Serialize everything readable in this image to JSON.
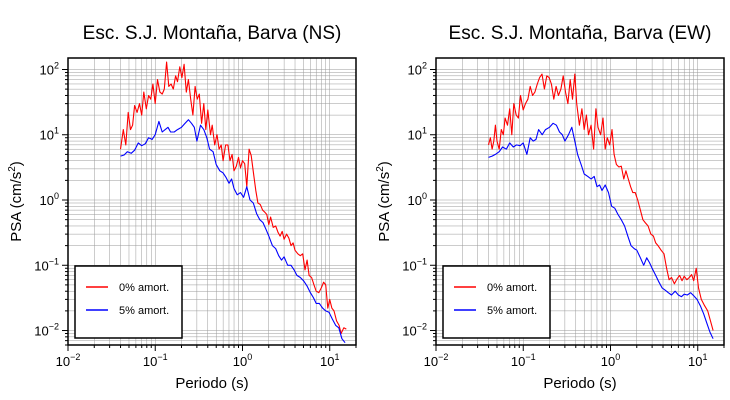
{
  "colors": {
    "red": "#ff0000",
    "blue": "#0000ff",
    "grid": "#9a9a9a",
    "axis": "#000000"
  },
  "chart_data": [
    {
      "type": "line",
      "title": "Esc. S.J. Montaña, Barva (NS)",
      "xlabel": "Periodo (s)",
      "ylabel_main": "PSA (cm/s",
      "ylabel_sup": "2",
      "ylabel_tail": ")",
      "xscale": "log",
      "yscale": "log",
      "xlim": [
        0.01,
        20
      ],
      "ylim": [
        0.006,
        150
      ],
      "grid": true,
      "legend_position": "bottom-left",
      "xticks": [
        {
          "b": "10",
          "e": "−2",
          "v": 0.01
        },
        {
          "b": "10",
          "e": "−1",
          "v": 0.1
        },
        {
          "b": "10",
          "e": "0",
          "v": 1
        },
        {
          "b": "10",
          "e": "1",
          "v": 10
        }
      ],
      "yticks": [
        {
          "b": "10",
          "e": "−2",
          "v": 0.01
        },
        {
          "b": "10",
          "e": "−1",
          "v": 0.1
        },
        {
          "b": "10",
          "e": "0",
          "v": 1
        },
        {
          "b": "10",
          "e": "1",
          "v": 10
        },
        {
          "b": "10",
          "e": "2",
          "v": 100
        }
      ],
      "series": [
        {
          "name": "0% amort.",
          "color": "#ff0000",
          "x": [
            0.04,
            0.043,
            0.046,
            0.049,
            0.052,
            0.055,
            0.058,
            0.062,
            0.066,
            0.07,
            0.074,
            0.079,
            0.084,
            0.089,
            0.094,
            0.1,
            0.106,
            0.113,
            0.12,
            0.127,
            0.135,
            0.143,
            0.152,
            0.161,
            0.171,
            0.18,
            0.191,
            0.202,
            0.214,
            0.227,
            0.24,
            0.255,
            0.27,
            0.286,
            0.303,
            0.32,
            0.34,
            0.36,
            0.38,
            0.4,
            0.43,
            0.45,
            0.48,
            0.51,
            0.54,
            0.57,
            0.6,
            0.64,
            0.68,
            0.72,
            0.76,
            0.8,
            0.85,
            0.9,
            0.95,
            1.0,
            1.06,
            1.12,
            1.19,
            1.26,
            1.34,
            1.42,
            1.5,
            1.6,
            1.7,
            1.8,
            1.9,
            2.0,
            2.1,
            2.25,
            2.4,
            2.55,
            2.7,
            2.85,
            3.0,
            3.2,
            3.4,
            3.6,
            3.8,
            4.0,
            4.3,
            4.6,
            4.9,
            5.2,
            5.5,
            5.8,
            6.2,
            6.6,
            7.0,
            7.5,
            8.0,
            8.5,
            9.0,
            9.5,
            10,
            10.6,
            11.2,
            12,
            12.8,
            13.5,
            14.5,
            15.5
          ],
          "y": [
            6,
            12,
            7,
            22,
            12,
            14,
            28,
            22,
            30,
            20,
            45,
            25,
            40,
            35,
            60,
            30,
            70,
            45,
            42,
            50,
            130,
            55,
            60,
            50,
            80,
            65,
            110,
            75,
            120,
            45,
            70,
            35,
            20,
            55,
            35,
            42,
            15,
            30,
            12,
            24,
            10,
            14,
            7,
            10,
            6,
            7,
            4,
            7,
            7,
            4,
            5,
            2.8,
            3.3,
            4.5,
            3.1,
            4.0,
            3.6,
            1.6,
            6.0,
            4.8,
            2.5,
            1.4,
            0.9,
            0.85,
            0.7,
            0.65,
            0.6,
            0.42,
            0.55,
            0.38,
            0.4,
            0.32,
            0.28,
            0.33,
            0.25,
            0.3,
            0.26,
            0.2,
            0.22,
            0.17,
            0.15,
            0.14,
            0.15,
            0.085,
            0.12,
            0.07,
            0.065,
            0.05,
            0.04,
            0.038,
            0.045,
            0.055,
            0.05,
            0.022,
            0.03,
            0.022,
            0.02,
            0.014,
            0.012,
            0.009,
            0.011,
            0.0105
          ]
        },
        {
          "name": "5% amort.",
          "color": "#0000ff",
          "x": [
            0.04,
            0.044,
            0.048,
            0.053,
            0.058,
            0.064,
            0.07,
            0.077,
            0.084,
            0.092,
            0.1,
            0.11,
            0.12,
            0.13,
            0.14,
            0.15,
            0.165,
            0.18,
            0.2,
            0.22,
            0.24,
            0.26,
            0.28,
            0.3,
            0.33,
            0.36,
            0.39,
            0.42,
            0.46,
            0.5,
            0.55,
            0.6,
            0.65,
            0.7,
            0.75,
            0.8,
            0.87,
            0.95,
            1.03,
            1.12,
            1.22,
            1.33,
            1.45,
            1.58,
            1.72,
            1.87,
            2.0,
            2.2,
            2.4,
            2.6,
            2.8,
            3.0,
            3.3,
            3.6,
            3.9,
            4.2,
            4.6,
            5.0,
            5.5,
            6.0,
            6.5,
            7.0,
            7.6,
            8.3,
            9.0,
            9.8,
            10.7,
            11.7,
            12.7,
            13.8,
            15.0
          ],
          "y": [
            4.7,
            4.9,
            5.5,
            5.2,
            5.8,
            7.5,
            6.8,
            7.3,
            9.0,
            8.5,
            10,
            16,
            11,
            12,
            13,
            11,
            11,
            12,
            13,
            15,
            17,
            15,
            13,
            8,
            14,
            12,
            9,
            6,
            5.5,
            3.5,
            2.8,
            2.6,
            2.2,
            1.8,
            2.1,
            1.5,
            1.2,
            1.3,
            1.1,
            1.6,
            1.0,
            0.9,
            0.62,
            0.5,
            0.45,
            0.35,
            0.28,
            0.2,
            0.18,
            0.14,
            0.12,
            0.135,
            0.1,
            0.1,
            0.085,
            0.07,
            0.065,
            0.058,
            0.048,
            0.038,
            0.032,
            0.026,
            0.026,
            0.022,
            0.02,
            0.019,
            0.015,
            0.012,
            0.011,
            0.0075,
            0.0065
          ]
        }
      ]
    },
    {
      "type": "line",
      "title": "Esc. S.J. Montaña, Barva (EW)",
      "xlabel": "Periodo (s)",
      "ylabel_main": "PSA (cm/s",
      "ylabel_sup": "2",
      "ylabel_tail": ")",
      "xscale": "log",
      "yscale": "log",
      "xlim": [
        0.01,
        20
      ],
      "ylim": [
        0.006,
        150
      ],
      "grid": true,
      "legend_position": "bottom-left",
      "xticks": [
        {
          "b": "10",
          "e": "−2",
          "v": 0.01
        },
        {
          "b": "10",
          "e": "−1",
          "v": 0.1
        },
        {
          "b": "10",
          "e": "0",
          "v": 1
        },
        {
          "b": "10",
          "e": "1",
          "v": 10
        }
      ],
      "yticks": [
        {
          "b": "10",
          "e": "−2",
          "v": 0.01
        },
        {
          "b": "10",
          "e": "−1",
          "v": 0.1
        },
        {
          "b": "10",
          "e": "0",
          "v": 1
        },
        {
          "b": "10",
          "e": "1",
          "v": 10
        },
        {
          "b": "10",
          "e": "2",
          "v": 100
        }
      ],
      "series": [
        {
          "name": "0% amort.",
          "color": "#ff0000",
          "x": [
            0.04,
            0.042,
            0.044,
            0.046,
            0.048,
            0.05,
            0.053,
            0.056,
            0.059,
            0.062,
            0.066,
            0.07,
            0.074,
            0.078,
            0.083,
            0.088,
            0.093,
            0.1,
            0.106,
            0.113,
            0.12,
            0.128,
            0.136,
            0.145,
            0.154,
            0.164,
            0.175,
            0.186,
            0.198,
            0.21,
            0.224,
            0.238,
            0.253,
            0.27,
            0.287,
            0.305,
            0.325,
            0.345,
            0.367,
            0.39,
            0.41,
            0.44,
            0.47,
            0.5,
            0.53,
            0.56,
            0.6,
            0.64,
            0.68,
            0.72,
            0.77,
            0.82,
            0.87,
            0.92,
            0.98,
            1.04,
            1.1,
            1.17,
            1.25,
            1.33,
            1.42,
            1.5,
            1.6,
            1.7,
            1.8,
            1.92,
            2.05,
            2.2,
            2.35,
            2.5,
            2.7,
            2.9,
            3.1,
            3.3,
            3.5,
            3.8,
            4.1,
            4.4,
            4.7,
            5.0,
            5.4,
            5.8,
            6.2,
            6.6,
            7.0,
            7.5,
            8.0,
            8.5,
            9.0,
            9.6,
            10.2,
            11,
            12,
            13,
            14,
            15
          ],
          "y": [
            7,
            9,
            6,
            8,
            14,
            8,
            6,
            12,
            10,
            18,
            14,
            25,
            10,
            30,
            20,
            18,
            40,
            24,
            30,
            35,
            55,
            40,
            45,
            60,
            75,
            85,
            50,
            80,
            75,
            60,
            35,
            55,
            40,
            50,
            80,
            45,
            30,
            70,
            35,
            85,
            30,
            14,
            25,
            12,
            20,
            10,
            14,
            6,
            25,
            13,
            10,
            18,
            6,
            9,
            7,
            12,
            5,
            3.5,
            3.2,
            3.3,
            2.1,
            2.8,
            2.1,
            1.6,
            1.3,
            1.3,
            1.0,
            0.7,
            0.5,
            0.45,
            0.4,
            0.3,
            0.28,
            0.22,
            0.2,
            0.17,
            0.15,
            0.09,
            0.06,
            0.065,
            0.052,
            0.062,
            0.07,
            0.058,
            0.068,
            0.06,
            0.065,
            0.072,
            0.058,
            0.09,
            0.045,
            0.03,
            0.024,
            0.02,
            0.014,
            0.01
          ]
        },
        {
          "name": "5% amort.",
          "color": "#0000ff",
          "x": [
            0.04,
            0.044,
            0.048,
            0.053,
            0.058,
            0.064,
            0.07,
            0.077,
            0.084,
            0.092,
            0.1,
            0.11,
            0.12,
            0.13,
            0.14,
            0.15,
            0.165,
            0.18,
            0.2,
            0.22,
            0.24,
            0.26,
            0.28,
            0.3,
            0.33,
            0.36,
            0.39,
            0.42,
            0.46,
            0.5,
            0.55,
            0.6,
            0.65,
            0.7,
            0.75,
            0.8,
            0.87,
            0.95,
            1.03,
            1.12,
            1.22,
            1.33,
            1.45,
            1.58,
            1.72,
            1.87,
            2.0,
            2.2,
            2.4,
            2.6,
            2.8,
            3.0,
            3.3,
            3.6,
            3.9,
            4.2,
            4.6,
            5.0,
            5.5,
            6.0,
            6.5,
            7.0,
            7.6,
            8.3,
            9.0,
            9.8,
            10.7,
            11.7,
            12.7,
            13.8,
            15.0
          ],
          "y": [
            4.5,
            4.7,
            5.0,
            5.5,
            6.5,
            6.0,
            7.5,
            6.5,
            7.0,
            6.8,
            7.5,
            5.0,
            9.0,
            8.0,
            8.5,
            12,
            10,
            12,
            13,
            15,
            14,
            11,
            10,
            8,
            10,
            13,
            8,
            5,
            3.5,
            2.5,
            2.3,
            2.1,
            2.3,
            1.6,
            1.7,
            1.4,
            1.7,
            1.3,
            0.8,
            0.75,
            0.6,
            0.5,
            0.4,
            0.28,
            0.2,
            0.18,
            0.17,
            0.13,
            0.1,
            0.13,
            0.11,
            0.09,
            0.07,
            0.055,
            0.045,
            0.042,
            0.038,
            0.035,
            0.04,
            0.035,
            0.033,
            0.036,
            0.035,
            0.038,
            0.034,
            0.03,
            0.024,
            0.018,
            0.013,
            0.0095,
            0.0075
          ]
        }
      ]
    }
  ]
}
